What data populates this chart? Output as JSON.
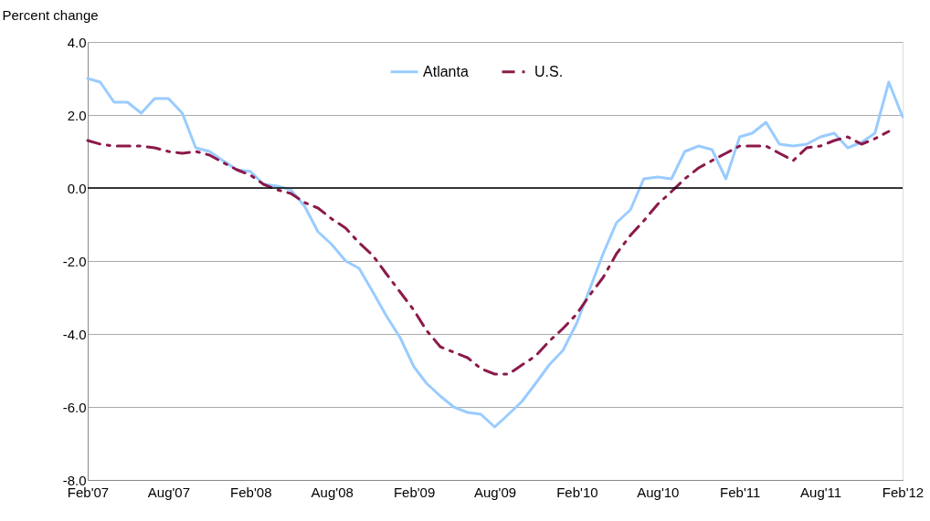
{
  "chart_data": {
    "type": "line",
    "ylabel": "Percent change",
    "x": [
      "2007-02",
      "2007-03",
      "2007-04",
      "2007-05",
      "2007-06",
      "2007-07",
      "2007-08",
      "2007-09",
      "2007-10",
      "2007-11",
      "2007-12",
      "2008-01",
      "2008-02",
      "2008-03",
      "2008-04",
      "2008-05",
      "2008-06",
      "2008-07",
      "2008-08",
      "2008-09",
      "2008-10",
      "2008-11",
      "2008-12",
      "2009-01",
      "2009-02",
      "2009-03",
      "2009-04",
      "2009-05",
      "2009-06",
      "2009-07",
      "2009-08",
      "2009-09",
      "2009-10",
      "2009-11",
      "2009-12",
      "2010-01",
      "2010-02",
      "2010-03",
      "2010-04",
      "2010-05",
      "2010-06",
      "2010-07",
      "2010-08",
      "2010-09",
      "2010-10",
      "2010-11",
      "2010-12",
      "2011-01",
      "2011-02",
      "2011-03",
      "2011-04",
      "2011-05",
      "2011-06",
      "2011-07",
      "2011-08",
      "2011-09",
      "2011-10",
      "2011-11",
      "2011-12",
      "2012-01",
      "2012-02"
    ],
    "series": [
      {
        "name": "Atlanta",
        "color": "#99ccff",
        "line_style": "solid",
        "values": [
          3.0,
          2.9,
          2.35,
          2.35,
          2.05,
          2.45,
          2.45,
          2.05,
          1.1,
          1.0,
          0.75,
          0.5,
          0.45,
          0.1,
          0.05,
          -0.05,
          -0.5,
          -1.2,
          -1.55,
          -2.0,
          -2.2,
          -2.85,
          -3.5,
          -4.1,
          -4.9,
          -5.35,
          -5.7,
          -6.0,
          -6.15,
          -6.2,
          -6.55,
          -6.2,
          -5.85,
          -5.35,
          -4.85,
          -4.45,
          -3.7,
          -2.8,
          -1.8,
          -0.95,
          -0.6,
          0.25,
          0.3,
          0.25,
          1.0,
          1.15,
          1.05,
          0.25,
          1.4,
          1.5,
          1.8,
          1.2,
          1.15,
          1.2,
          1.4,
          1.5,
          1.1,
          1.25,
          1.5,
          2.9,
          1.95
        ]
      },
      {
        "name": "U.S.",
        "color": "#8b1a4a",
        "line_style": "dashed",
        "values": [
          1.3,
          1.2,
          1.15,
          1.15,
          1.15,
          1.1,
          1.0,
          0.95,
          1.0,
          0.9,
          0.7,
          0.5,
          0.35,
          0.1,
          -0.05,
          -0.15,
          -0.4,
          -0.55,
          -0.85,
          -1.1,
          -1.5,
          -1.85,
          -2.35,
          -2.85,
          -3.35,
          -3.9,
          -4.35,
          -4.5,
          -4.65,
          -4.95,
          -5.1,
          -5.1,
          -4.85,
          -4.6,
          -4.2,
          -3.85,
          -3.45,
          -2.95,
          -2.45,
          -1.8,
          -1.3,
          -0.9,
          -0.45,
          -0.1,
          0.25,
          0.55,
          0.75,
          0.95,
          1.15,
          1.15,
          1.15,
          0.95,
          0.75,
          1.1,
          1.15,
          1.3,
          1.4,
          1.2,
          1.35,
          1.55,
          null
        ]
      }
    ],
    "xlim": [
      "2007-02",
      "2012-02"
    ],
    "xticks": [
      {
        "value": "2007-02",
        "label": "Feb'07"
      },
      {
        "value": "2007-08",
        "label": "Aug'07"
      },
      {
        "value": "2008-02",
        "label": "Feb'08"
      },
      {
        "value": "2008-08",
        "label": "Aug'08"
      },
      {
        "value": "2009-02",
        "label": "Feb'09"
      },
      {
        "value": "2009-08",
        "label": "Aug'09"
      },
      {
        "value": "2010-02",
        "label": "Feb'10"
      },
      {
        "value": "2010-08",
        "label": "Aug'10"
      },
      {
        "value": "2011-02",
        "label": "Feb'11"
      },
      {
        "value": "2011-08",
        "label": "Aug'11"
      },
      {
        "value": "2012-02",
        "label": "Feb'12"
      }
    ],
    "ylim": [
      -8.0,
      4.0
    ],
    "yticks": [
      {
        "value": -8,
        "label": "-8.0"
      },
      {
        "value": -6,
        "label": "-6.0"
      },
      {
        "value": -4,
        "label": "-4.0"
      },
      {
        "value": -2,
        "label": "-2.0"
      },
      {
        "value": 0,
        "label": "0.0"
      },
      {
        "value": 2,
        "label": "2.0"
      },
      {
        "value": 4,
        "label": "4.0"
      }
    ],
    "grid": "y",
    "legend": "top",
    "ref_lines": [
      {
        "axis": "y",
        "value": 0,
        "color": "#000000"
      }
    ]
  }
}
